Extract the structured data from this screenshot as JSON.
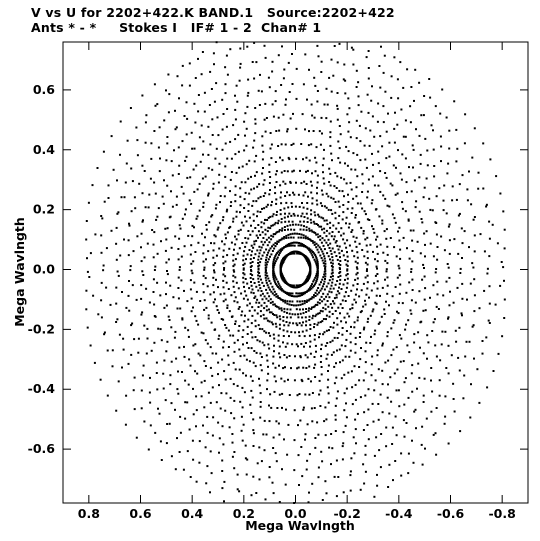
{
  "chart_data": {
    "type": "scatter",
    "title": "V vs U for 2202+422.K BAND.1   Source:2202+422",
    "subtitle": "Ants * - *     Stokes I   IF# 1 - 2  Chan# 1",
    "xlabel": "Mega Wavlngth",
    "ylabel": "Mega Wavlngth",
    "xlim": [
      0.9,
      -0.9
    ],
    "ylim": [
      -0.78,
      0.76
    ],
    "x_ticks": [
      0.8,
      0.6,
      0.4,
      0.2,
      0.0,
      -0.2,
      -0.4,
      -0.6,
      -0.8
    ],
    "x_tick_labels": [
      "0.8",
      "0.6",
      "0.4",
      "0.2",
      "0.0",
      "-0.2",
      "-0.4",
      "-0.6",
      "-0.8"
    ],
    "y_ticks": [
      0.6,
      0.4,
      0.2,
      0.0,
      -0.2,
      -0.4,
      -0.6
    ],
    "y_tick_labels": [
      "0.6",
      "0.4",
      "0.2",
      "0.0",
      "-0.2",
      "-0.4",
      "-0.6"
    ],
    "grid": false,
    "marker_color": "#000000",
    "coverage": {
      "description_free_params": true,
      "baseline_max_len": [
        0.06,
        0.09,
        0.12,
        0.15,
        0.18,
        0.21,
        0.25,
        0.29,
        0.33,
        0.37,
        0.42,
        0.47,
        0.52,
        0.57,
        0.62,
        0.67,
        0.72,
        0.78,
        0.84
      ],
      "arm_angles_deg": [
        30,
        90,
        150
      ],
      "ellipse_axis_ratio": 0.85,
      "points_per_track": 26
    }
  }
}
